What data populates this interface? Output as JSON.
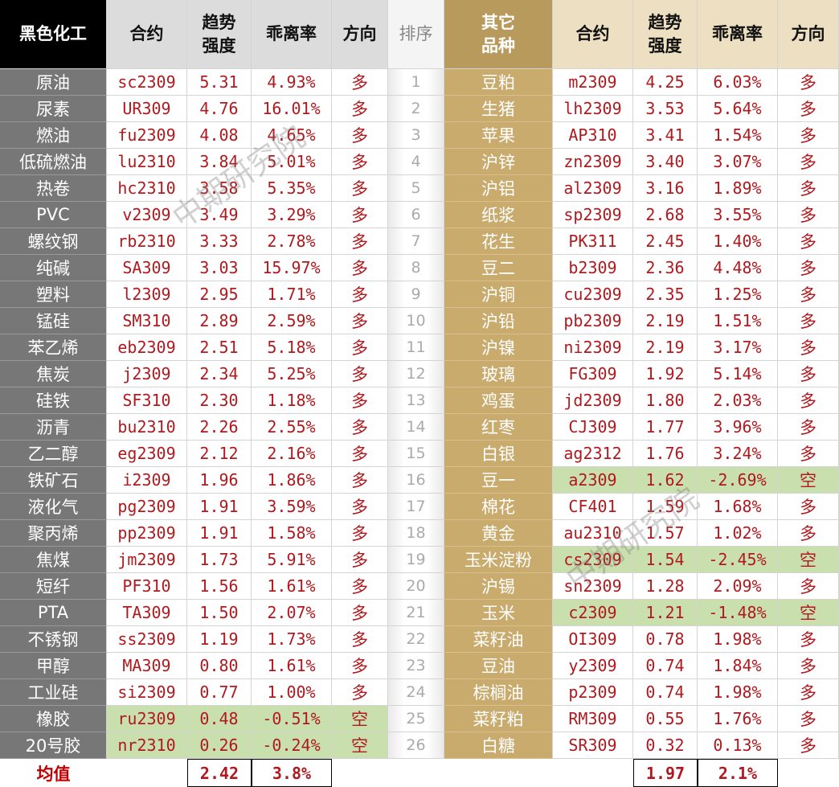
{
  "header": [
    "黑色化工",
    "合约",
    "趋势强度",
    "乖离率",
    "方向",
    "排序",
    "其它品种",
    "合约",
    "趋势强度",
    "乖离率",
    "方向"
  ],
  "rows": [
    [
      "原油",
      "sc2309",
      "5.31",
      "4.93%",
      "多",
      "1",
      "豆粕",
      "m2309",
      "4.25",
      "6.03%",
      "多"
    ],
    [
      "尿素",
      "UR309",
      "4.76",
      "16.01%",
      "多",
      "2",
      "生猪",
      "lh2309",
      "3.53",
      "5.64%",
      "多"
    ],
    [
      "燃油",
      "fu2309",
      "4.08",
      "4.65%",
      "多",
      "3",
      "苹果",
      "AP310",
      "3.41",
      "1.54%",
      "多"
    ],
    [
      "低硫燃油",
      "lu2310",
      "3.84",
      "5.01%",
      "多",
      "4",
      "沪锌",
      "zn2309",
      "3.40",
      "3.07%",
      "多"
    ],
    [
      "热卷",
      "hc2310",
      "3.58",
      "5.35%",
      "多",
      "5",
      "沪铝",
      "al2309",
      "3.16",
      "1.89%",
      "多"
    ],
    [
      "PVC",
      "v2309",
      "3.49",
      "3.29%",
      "多",
      "6",
      "纸浆",
      "sp2309",
      "2.68",
      "3.55%",
      "多"
    ],
    [
      "螺纹钢",
      "rb2310",
      "3.33",
      "2.78%",
      "多",
      "7",
      "花生",
      "PK311",
      "2.45",
      "1.40%",
      "多"
    ],
    [
      "纯碱",
      "SA309",
      "3.03",
      "15.97%",
      "多",
      "8",
      "豆二",
      "b2309",
      "2.36",
      "4.48%",
      "多"
    ],
    [
      "塑料",
      "l2309",
      "2.95",
      "1.71%",
      "多",
      "9",
      "沪铜",
      "cu2309",
      "2.35",
      "1.25%",
      "多"
    ],
    [
      "锰硅",
      "SM310",
      "2.89",
      "2.59%",
      "多",
      "10",
      "沪铅",
      "pb2309",
      "2.19",
      "1.51%",
      "多"
    ],
    [
      "苯乙烯",
      "eb2309",
      "2.51",
      "5.18%",
      "多",
      "11",
      "沪镍",
      "ni2309",
      "2.19",
      "3.17%",
      "多"
    ],
    [
      "焦炭",
      "j2309",
      "2.34",
      "5.25%",
      "多",
      "12",
      "玻璃",
      "FG309",
      "1.92",
      "5.14%",
      "多"
    ],
    [
      "硅铁",
      "SF310",
      "2.30",
      "1.18%",
      "多",
      "13",
      "鸡蛋",
      "jd2309",
      "1.80",
      "2.03%",
      "多"
    ],
    [
      "沥青",
      "bu2310",
      "2.26",
      "2.55%",
      "多",
      "14",
      "红枣",
      "CJ309",
      "1.77",
      "3.96%",
      "多"
    ],
    [
      "乙二醇",
      "eg2309",
      "2.12",
      "2.16%",
      "多",
      "15",
      "白银",
      "ag2312",
      "1.76",
      "3.24%",
      "多"
    ],
    [
      "铁矿石",
      "i2309",
      "1.96",
      "1.86%",
      "多",
      "16",
      "豆一",
      "a2309",
      "1.62",
      "-2.69%",
      "空"
    ],
    [
      "液化气",
      "pg2309",
      "1.91",
      "3.59%",
      "多",
      "17",
      "棉花",
      "CF401",
      "1.59",
      "1.68%",
      "多"
    ],
    [
      "聚丙烯",
      "pp2309",
      "1.91",
      "1.58%",
      "多",
      "18",
      "黄金",
      "au2310",
      "1.57",
      "1.02%",
      "多"
    ],
    [
      "焦煤",
      "jm2309",
      "1.73",
      "5.91%",
      "多",
      "19",
      "玉米淀粉",
      "cs2309",
      "1.54",
      "-2.45%",
      "空"
    ],
    [
      "短纤",
      "PF310",
      "1.56",
      "1.61%",
      "多",
      "20",
      "沪锡",
      "sn2309",
      "1.28",
      "2.09%",
      "多"
    ],
    [
      "PTA",
      "TA309",
      "1.50",
      "2.07%",
      "多",
      "21",
      "玉米",
      "c2309",
      "1.21",
      "-1.48%",
      "空"
    ],
    [
      "不锈钢",
      "ss2309",
      "1.19",
      "1.73%",
      "多",
      "22",
      "菜籽油",
      "OI309",
      "0.78",
      "1.98%",
      "多"
    ],
    [
      "甲醇",
      "MA309",
      "0.80",
      "1.61%",
      "多",
      "23",
      "豆油",
      "y2309",
      "0.74",
      "1.84%",
      "多"
    ],
    [
      "工业硅",
      "si2309",
      "0.77",
      "1.00%",
      "多",
      "24",
      "棕榈油",
      "p2309",
      "0.74",
      "1.98%",
      "多"
    ],
    [
      "橡胶",
      "ru2309",
      "0.48",
      "-0.51%",
      "空",
      "25",
      "菜籽粕",
      "RM309",
      "0.55",
      "1.76%",
      "多"
    ],
    [
      "20号胶",
      "nr2310",
      "0.26",
      "-0.24%",
      "空",
      "26",
      "白糖",
      "SR309",
      "0.32",
      "0.13%",
      "多"
    ]
  ],
  "footer": {
    "label": "均值",
    "left_strength": "2.42",
    "left_deviation": "3.8%",
    "right_strength": "1.97",
    "right_deviation": "2.1%"
  },
  "watermark": "中期研究院"
}
